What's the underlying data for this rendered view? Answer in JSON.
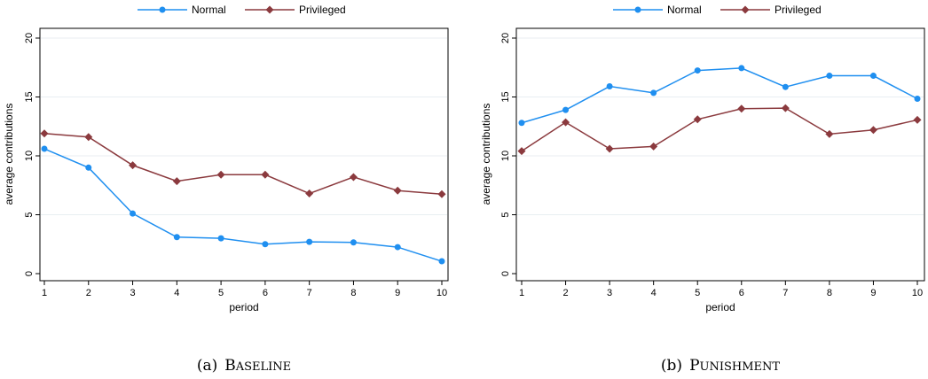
{
  "chart_data": [
    {
      "type": "line",
      "caption_label": "(a)",
      "caption_title": "Baseline",
      "xlabel": "period",
      "ylabel": "average contributions",
      "x": [
        1,
        2,
        3,
        4,
        5,
        6,
        7,
        8,
        9,
        10
      ],
      "ylim": [
        0,
        20
      ],
      "yticks": [
        0,
        5,
        10,
        15,
        20
      ],
      "grid": true,
      "legend_position": "top",
      "series": [
        {
          "name": "Normal",
          "color": "#1f8ff0",
          "marker": "circle",
          "values": [
            10.6,
            9.0,
            5.1,
            3.1,
            3.0,
            2.5,
            2.7,
            2.65,
            2.25,
            1.05
          ]
        },
        {
          "name": "Privileged",
          "color": "#8b3a3e",
          "marker": "diamond",
          "values": [
            11.9,
            11.6,
            9.2,
            7.85,
            8.4,
            8.4,
            6.8,
            8.2,
            7.05,
            6.75
          ]
        }
      ]
    },
    {
      "type": "line",
      "caption_label": "(b)",
      "caption_title": "Punishment",
      "xlabel": "period",
      "ylabel": "average contributions",
      "x": [
        1,
        2,
        3,
        4,
        5,
        6,
        7,
        8,
        9,
        10
      ],
      "ylim": [
        0,
        20
      ],
      "yticks": [
        0,
        5,
        10,
        15,
        20
      ],
      "grid": true,
      "legend_position": "top",
      "series": [
        {
          "name": "Normal",
          "color": "#1f8ff0",
          "marker": "circle",
          "values": [
            12.8,
            13.9,
            15.9,
            15.35,
            17.25,
            17.45,
            15.85,
            16.8,
            16.8,
            14.85
          ]
        },
        {
          "name": "Privileged",
          "color": "#8b3a3e",
          "marker": "diamond",
          "values": [
            10.4,
            12.85,
            10.6,
            10.8,
            13.1,
            14.0,
            14.05,
            11.85,
            12.2,
            13.05
          ]
        }
      ]
    }
  ]
}
